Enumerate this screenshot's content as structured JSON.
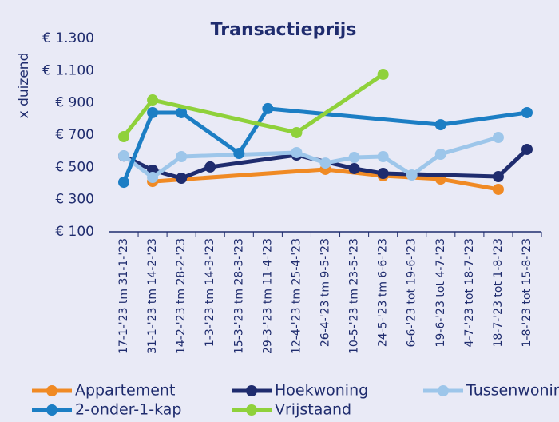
{
  "chart_data": {
    "type": "line",
    "title": "Transactieprijs",
    "ylabel": "x duizend",
    "categories": [
      "17-1-'23 tm 31-1-'23",
      "31-1-'23 tm 14-2-'23",
      "14-2-'23 tm 28-2-'23",
      "1-3-'23 tm 14-3-'23",
      "15-3-'23 tm 28-3-'23",
      "29-3-'23 tm 11-4-'23",
      "12-4-'23 tm 25-4-'23",
      "26-4-'23 tm 9-5-'23",
      "10-5-'23 tm 23-5-'23",
      "24-5-'23 tm 6-6-'23",
      "6-6-'23 tot 19-6-'23",
      "19-6-'23 tot 4-7-'23",
      "4-7-'23 tot 18-7-'23",
      "18-7-'23 tot 1-8-'23",
      "1-8-'23 tot 15-8-'23"
    ],
    "series": [
      {
        "name": "Appartement",
        "color": "#f08a24",
        "values": [
          null,
          412,
          null,
          null,
          null,
          null,
          null,
          487,
          null,
          447,
          null,
          427,
          null,
          363,
          null
        ]
      },
      {
        "name": "Hoekwoning",
        "color": "#1f2c6e",
        "values": [
          570,
          482,
          432,
          502,
          null,
          null,
          576,
          null,
          492,
          462,
          null,
          null,
          null,
          442,
          611
        ]
      },
      {
        "name": "Tussenwoning",
        "color": "#9dc6ea",
        "values": [
          571,
          437,
          566,
          null,
          null,
          null,
          591,
          526,
          561,
          566,
          452,
          581,
          null,
          685,
          null
        ]
      },
      {
        "name": "2-onder-1-kap",
        "color": "#1c7ec4",
        "values": [
          407,
          839,
          839,
          null,
          586,
          864,
          null,
          null,
          null,
          null,
          null,
          764,
          null,
          null,
          839
        ]
      },
      {
        "name": "Vrijstaand",
        "color": "#8fd13b",
        "values": [
          690,
          918,
          null,
          null,
          null,
          null,
          715,
          null,
          null,
          1077,
          null,
          null,
          null,
          null,
          null
        ]
      }
    ],
    "ylim": [
      100,
      1300
    ],
    "yticks": [
      {
        "value": 100,
        "label": "€ 100"
      },
      {
        "value": 300,
        "label": "€ 300"
      },
      {
        "value": 500,
        "label": "€ 500"
      },
      {
        "value": 700,
        "label": "€ 700"
      },
      {
        "value": 900,
        "label": "€ 900"
      },
      {
        "value": 1100,
        "label": "€ 1.100"
      },
      {
        "value": 1300,
        "label": "€ 1.300"
      }
    ],
    "grid": false,
    "legend": "bottom"
  }
}
